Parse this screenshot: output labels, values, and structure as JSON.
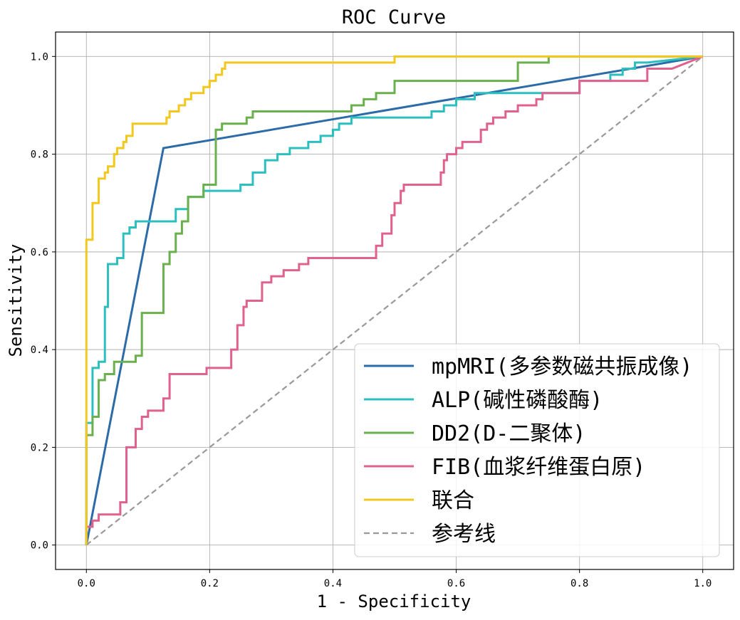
{
  "chart_data": {
    "type": "line",
    "title": "ROC Curve",
    "xlabel": "1 - Specificity",
    "ylabel": "Sensitivity",
    "xlim": [
      -0.05,
      1.05
    ],
    "ylim": [
      -0.05,
      1.05
    ],
    "grid": true,
    "xticks": [
      0.0,
      0.2,
      0.4,
      0.6,
      0.8,
      1.0
    ],
    "yticks": [
      0.0,
      0.2,
      0.4,
      0.6,
      0.8,
      1.0
    ],
    "xtick_labels": [
      "0.0",
      "0.2",
      "0.4",
      "0.6",
      "0.8",
      "1.0"
    ],
    "ytick_labels": [
      "0.0",
      "0.2",
      "0.4",
      "0.6",
      "0.8",
      "1.0"
    ],
    "legend_position": "lower-right",
    "series": [
      {
        "name": "mpMRI(多参数磁共振成像)",
        "color": "#2b6ca8",
        "style": "solid",
        "x": [
          0.0,
          0.125,
          1.0
        ],
        "y": [
          0.0,
          0.8125,
          1.0
        ]
      },
      {
        "name": "ALP(碱性磷酸酶)",
        "color": "#2cbfbf",
        "style": "solid",
        "x": [
          0.0,
          0.0,
          0.01,
          0.01,
          0.02,
          0.02,
          0.03,
          0.03,
          0.035,
          0.035,
          0.05,
          0.05,
          0.06,
          0.06,
          0.07,
          0.07,
          0.08,
          0.08,
          0.1,
          0.1,
          0.11,
          0.11,
          0.145,
          0.145,
          0.165,
          0.165,
          0.19,
          0.19,
          0.22,
          0.22,
          0.25,
          0.25,
          0.27,
          0.27,
          0.29,
          0.29,
          0.31,
          0.31,
          0.33,
          0.33,
          0.36,
          0.36,
          0.38,
          0.38,
          0.4,
          0.4,
          0.41,
          0.41,
          0.43,
          0.43,
          0.45,
          0.45,
          0.47,
          0.47,
          0.49,
          0.49,
          0.51,
          0.51,
          0.56,
          0.56,
          0.58,
          0.58,
          0.6,
          0.6,
          0.61,
          0.61,
          0.63,
          0.63,
          0.64,
          0.64,
          0.76,
          0.76,
          0.8,
          0.8,
          0.85,
          0.85,
          0.87,
          0.87,
          0.89,
          0.89,
          0.91,
          1.0
        ],
        "y": [
          0.0,
          0.25,
          0.25,
          0.3625,
          0.3625,
          0.375,
          0.375,
          0.4875,
          0.4875,
          0.575,
          0.575,
          0.5875,
          0.5875,
          0.6375,
          0.6375,
          0.65,
          0.65,
          0.6625,
          0.6625,
          0.6625,
          0.6625,
          0.6625,
          0.6625,
          0.6875,
          0.6875,
          0.7125,
          0.7125,
          0.725,
          0.725,
          0.725,
          0.725,
          0.7375,
          0.7375,
          0.7625,
          0.7625,
          0.7875,
          0.7875,
          0.8,
          0.8,
          0.8125,
          0.8125,
          0.825,
          0.825,
          0.8375,
          0.8375,
          0.85,
          0.85,
          0.8625,
          0.8625,
          0.875,
          0.875,
          0.875,
          0.875,
          0.875,
          0.875,
          0.875,
          0.875,
          0.875,
          0.875,
          0.8875,
          0.8875,
          0.9,
          0.9,
          0.9125,
          0.9125,
          0.9125,
          0.9125,
          0.925,
          0.925,
          0.925,
          0.925,
          0.925,
          0.925,
          0.95,
          0.95,
          0.9625,
          0.9625,
          0.975,
          0.975,
          0.9875,
          0.9875,
          1.0
        ]
      },
      {
        "name": "DD2(D-二聚体)",
        "color": "#6ab04c",
        "style": "solid",
        "x": [
          0.0,
          0.0,
          0.01,
          0.01,
          0.02,
          0.02,
          0.03,
          0.03,
          0.045,
          0.045,
          0.06,
          0.06,
          0.08,
          0.08,
          0.09,
          0.09,
          0.125,
          0.125,
          0.135,
          0.135,
          0.145,
          0.145,
          0.155,
          0.155,
          0.165,
          0.165,
          0.19,
          0.19,
          0.21,
          0.21,
          0.22,
          0.22,
          0.26,
          0.26,
          0.27,
          0.27,
          0.43,
          0.43,
          0.45,
          0.45,
          0.47,
          0.47,
          0.5,
          0.5,
          0.7,
          0.7,
          0.75,
          0.75,
          1.0
        ],
        "y": [
          0.0,
          0.225,
          0.225,
          0.2625,
          0.2625,
          0.3375,
          0.3375,
          0.35,
          0.35,
          0.375,
          0.375,
          0.375,
          0.375,
          0.3875,
          0.3875,
          0.475,
          0.475,
          0.575,
          0.575,
          0.6,
          0.6,
          0.6375,
          0.6375,
          0.6625,
          0.6625,
          0.7125,
          0.7125,
          0.7375,
          0.7375,
          0.85,
          0.85,
          0.8625,
          0.8625,
          0.875,
          0.875,
          0.8875,
          0.8875,
          0.9,
          0.9,
          0.9125,
          0.9125,
          0.925,
          0.925,
          0.95,
          0.95,
          0.9875,
          0.9875,
          1.0,
          1.0
        ]
      },
      {
        "name": "FIB(血浆纤维蛋白原)",
        "color": "#e0608e",
        "style": "solid",
        "x": [
          0.0,
          0.0,
          0.01,
          0.01,
          0.02,
          0.02,
          0.055,
          0.055,
          0.065,
          0.065,
          0.08,
          0.08,
          0.09,
          0.09,
          0.1,
          0.1,
          0.125,
          0.125,
          0.135,
          0.135,
          0.195,
          0.195,
          0.235,
          0.235,
          0.245,
          0.245,
          0.255,
          0.255,
          0.26,
          0.26,
          0.285,
          0.285,
          0.3,
          0.3,
          0.32,
          0.32,
          0.345,
          0.345,
          0.36,
          0.36,
          0.39,
          0.39,
          0.43,
          0.43,
          0.47,
          0.47,
          0.48,
          0.48,
          0.495,
          0.495,
          0.5,
          0.5,
          0.51,
          0.51,
          0.515,
          0.515,
          0.53,
          0.53,
          0.55,
          0.55,
          0.575,
          0.575,
          0.58,
          0.58,
          0.585,
          0.585,
          0.595,
          0.595,
          0.6,
          0.6,
          0.61,
          0.61,
          0.64,
          0.64,
          0.65,
          0.65,
          0.66,
          0.66,
          0.68,
          0.68,
          0.7,
          0.7,
          0.73,
          0.73,
          0.74,
          0.74,
          0.75,
          0.75,
          0.77,
          0.77,
          0.8,
          0.8,
          0.85,
          0.85,
          0.9,
          0.9,
          0.91,
          0.91,
          0.95,
          1.0
        ],
        "y": [
          0.0,
          0.0375,
          0.0375,
          0.05,
          0.05,
          0.0625,
          0.0625,
          0.0875,
          0.0875,
          0.2,
          0.2,
          0.2375,
          0.2375,
          0.2625,
          0.2625,
          0.275,
          0.275,
          0.3,
          0.3,
          0.35,
          0.35,
          0.3625,
          0.3625,
          0.4,
          0.4,
          0.45,
          0.45,
          0.4875,
          0.4875,
          0.5,
          0.5,
          0.5375,
          0.5375,
          0.55,
          0.55,
          0.5625,
          0.5625,
          0.575,
          0.575,
          0.5875,
          0.5875,
          0.5875,
          0.5875,
          0.5875,
          0.5875,
          0.6125,
          0.6125,
          0.6375,
          0.6375,
          0.675,
          0.675,
          0.7,
          0.7,
          0.725,
          0.725,
          0.7375,
          0.7375,
          0.7375,
          0.7375,
          0.7375,
          0.7375,
          0.7625,
          0.7625,
          0.7875,
          0.7875,
          0.8,
          0.8,
          0.8,
          0.8,
          0.8125,
          0.8125,
          0.825,
          0.825,
          0.85,
          0.85,
          0.8625,
          0.8625,
          0.875,
          0.875,
          0.8875,
          0.8875,
          0.9,
          0.9,
          0.9125,
          0.9125,
          0.925,
          0.925,
          0.925,
          0.925,
          0.925,
          0.925,
          0.95,
          0.95,
          0.95,
          0.95,
          0.95,
          0.95,
          0.975,
          0.975,
          1.0
        ]
      },
      {
        "name": "联合",
        "color": "#f2c81f",
        "style": "solid",
        "x": [
          0.0,
          0.0,
          0.01,
          0.01,
          0.02,
          0.02,
          0.03,
          0.03,
          0.035,
          0.035,
          0.045,
          0.045,
          0.05,
          0.05,
          0.06,
          0.06,
          0.065,
          0.065,
          0.075,
          0.075,
          0.1,
          0.1,
          0.13,
          0.13,
          0.135,
          0.135,
          0.15,
          0.15,
          0.16,
          0.16,
          0.17,
          0.17,
          0.19,
          0.19,
          0.2,
          0.2,
          0.21,
          0.21,
          0.22,
          0.22,
          0.225,
          0.225,
          0.5,
          0.5,
          1.0
        ],
        "y": [
          0.0,
          0.625,
          0.625,
          0.7,
          0.7,
          0.75,
          0.75,
          0.7625,
          0.7625,
          0.775,
          0.775,
          0.8,
          0.8,
          0.8125,
          0.8125,
          0.825,
          0.825,
          0.8375,
          0.8375,
          0.8625,
          0.8625,
          0.8625,
          0.8625,
          0.875,
          0.875,
          0.8875,
          0.8875,
          0.9,
          0.9,
          0.9125,
          0.9125,
          0.925,
          0.925,
          0.9375,
          0.9375,
          0.95,
          0.95,
          0.9625,
          0.9625,
          0.975,
          0.975,
          0.9875,
          0.9875,
          1.0,
          1.0
        ]
      },
      {
        "name": "参考线",
        "color": "#999999",
        "style": "dashed",
        "x": [
          0.0,
          1.0
        ],
        "y": [
          0.0,
          1.0
        ]
      }
    ]
  }
}
